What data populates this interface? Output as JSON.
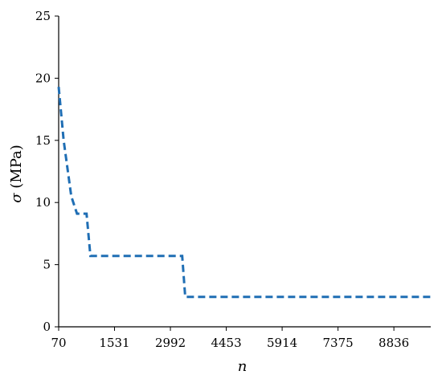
{
  "chart_data": {
    "type": "line",
    "title": "",
    "xlabel": "n",
    "ylabel_symbol": "σ",
    "ylabel_unit": " (MPa)",
    "x_ticks": [
      70,
      1531,
      2992,
      4453,
      5914,
      7375,
      8836
    ],
    "y_ticks": [
      0,
      5,
      10,
      15,
      20,
      25
    ],
    "xlim": [
      70,
      9800
    ],
    "ylim": [
      0,
      25
    ],
    "grid": false,
    "legend": "none",
    "series": [
      {
        "color": "#1f6eb4",
        "style": "dashed",
        "points": [
          [
            70,
            19.3
          ],
          [
            200,
            15.0
          ],
          [
            400,
            10.5
          ],
          [
            550,
            9.1
          ],
          [
            800,
            9.1
          ],
          [
            900,
            5.7
          ],
          [
            3300,
            5.7
          ],
          [
            3380,
            2.4
          ],
          [
            9800,
            2.4
          ]
        ]
      }
    ]
  }
}
